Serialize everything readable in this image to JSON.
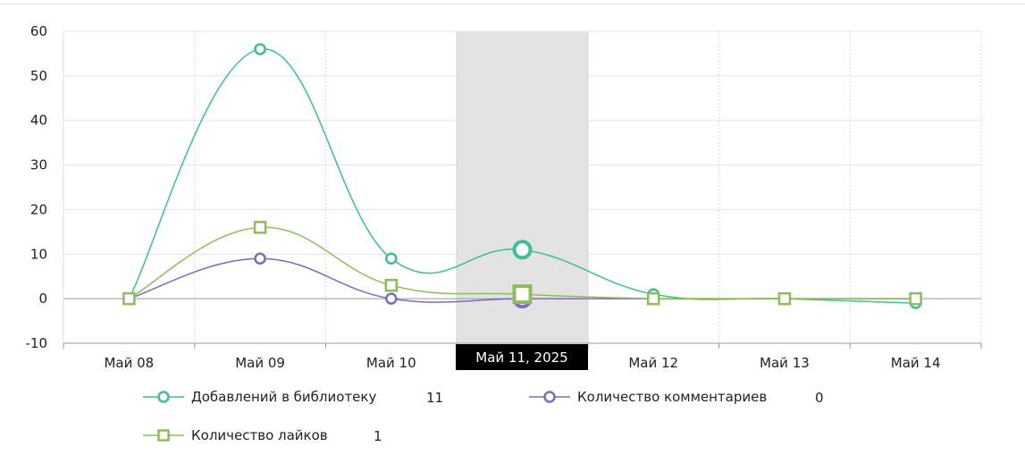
{
  "chart_data": {
    "type": "line",
    "categories": [
      "Май 08",
      "Май 09",
      "Май 10",
      "Май 11",
      "Май 12",
      "Май 13",
      "Май 14"
    ],
    "ylim": [
      -10,
      60
    ],
    "yticks": [
      -10,
      0,
      10,
      20,
      30,
      40,
      50,
      60
    ],
    "grid": true,
    "legend_placement": "bottom",
    "highlight_index": 3,
    "highlight_label": "Май 11, 2025",
    "series": [
      {
        "name": "Добавлений в библиотеку",
        "color": "#3dbf95",
        "marker": "circle",
        "legend_value": "11",
        "values": [
          0,
          56,
          9,
          11,
          1,
          0,
          -1
        ]
      },
      {
        "name": "Количество комментариев",
        "color": "#7b6bbf",
        "marker": "circle",
        "legend_value": "0",
        "values": [
          0,
          9,
          0,
          0,
          0,
          0,
          0
        ]
      },
      {
        "name": "Количество лайков",
        "color": "#8dbd5b",
        "marker": "square",
        "legend_value": "1",
        "values": [
          0,
          16,
          3,
          1,
          0,
          0,
          0
        ]
      }
    ]
  }
}
